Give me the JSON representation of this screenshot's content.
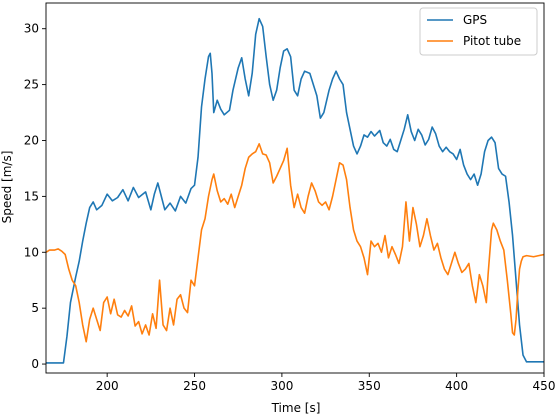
{
  "chart_data": {
    "type": "line",
    "xlabel": "Time [s]",
    "ylabel": "Speed [m/s]",
    "xlim": [
      165,
      450
    ],
    "ylim": [
      -0.8,
      32.3
    ],
    "xticks": [
      200,
      250,
      300,
      350,
      400,
      450
    ],
    "yticks": [
      0,
      5,
      10,
      15,
      20,
      25,
      30
    ],
    "grid": false,
    "legend": "top-right",
    "series": [
      {
        "name": "GPS",
        "color": "#1f77b4",
        "points": [
          [
            165,
            0.1
          ],
          [
            175,
            0.1
          ],
          [
            177,
            2.5
          ],
          [
            179,
            5.5
          ],
          [
            182,
            7.8
          ],
          [
            184,
            9.2
          ],
          [
            186,
            11.0
          ],
          [
            188,
            12.6
          ],
          [
            190,
            14.0
          ],
          [
            192,
            14.5
          ],
          [
            194,
            13.8
          ],
          [
            197,
            14.2
          ],
          [
            200,
            15.2
          ],
          [
            203,
            14.6
          ],
          [
            206,
            14.9
          ],
          [
            209,
            15.6
          ],
          [
            212,
            14.6
          ],
          [
            215,
            15.8
          ],
          [
            218,
            14.9
          ],
          [
            222,
            15.4
          ],
          [
            225,
            13.8
          ],
          [
            227,
            15.2
          ],
          [
            229,
            16.2
          ],
          [
            231,
            15.0
          ],
          [
            233,
            13.8
          ],
          [
            236,
            14.4
          ],
          [
            239,
            13.7
          ],
          [
            242,
            15.0
          ],
          [
            245,
            14.4
          ],
          [
            248,
            15.7
          ],
          [
            250,
            16.0
          ],
          [
            252,
            18.5
          ],
          [
            254,
            23.0
          ],
          [
            256,
            25.5
          ],
          [
            258,
            27.5
          ],
          [
            259,
            27.8
          ],
          [
            260,
            26.0
          ],
          [
            261,
            22.5
          ],
          [
            263,
            23.6
          ],
          [
            265,
            22.8
          ],
          [
            267,
            22.3
          ],
          [
            270,
            22.7
          ],
          [
            272,
            24.5
          ],
          [
            275,
            26.5
          ],
          [
            277,
            27.4
          ],
          [
            279,
            25.5
          ],
          [
            281,
            24.0
          ],
          [
            283,
            26.0
          ],
          [
            285,
            29.5
          ],
          [
            287,
            30.9
          ],
          [
            289,
            30.2
          ],
          [
            291,
            27.5
          ],
          [
            293,
            25.0
          ],
          [
            295,
            23.6
          ],
          [
            297,
            24.5
          ],
          [
            299,
            26.5
          ],
          [
            301,
            28.0
          ],
          [
            303,
            28.2
          ],
          [
            305,
            27.5
          ],
          [
            307,
            24.5
          ],
          [
            309,
            24.0
          ],
          [
            311,
            25.5
          ],
          [
            313,
            26.2
          ],
          [
            316,
            26.0
          ],
          [
            318,
            25.0
          ],
          [
            320,
            24.0
          ],
          [
            322,
            22.0
          ],
          [
            324,
            22.5
          ],
          [
            327,
            24.5
          ],
          [
            329,
            25.5
          ],
          [
            331,
            26.2
          ],
          [
            333,
            25.5
          ],
          [
            335,
            25.0
          ],
          [
            337,
            22.5
          ],
          [
            339,
            21.0
          ],
          [
            341,
            19.5
          ],
          [
            343,
            18.8
          ],
          [
            345,
            19.5
          ],
          [
            347,
            20.5
          ],
          [
            349,
            20.3
          ],
          [
            351,
            20.8
          ],
          [
            353,
            20.4
          ],
          [
            356,
            20.9
          ],
          [
            358,
            19.8
          ],
          [
            360,
            19.5
          ],
          [
            362,
            20.1
          ],
          [
            364,
            19.2
          ],
          [
            366,
            19.0
          ],
          [
            368,
            20.0
          ],
          [
            370,
            21.0
          ],
          [
            372,
            22.3
          ],
          [
            374,
            20.8
          ],
          [
            376,
            20.0
          ],
          [
            378,
            21.0
          ],
          [
            380,
            20.5
          ],
          [
            382,
            19.6
          ],
          [
            384,
            20.1
          ],
          [
            386,
            21.2
          ],
          [
            388,
            20.6
          ],
          [
            390,
            19.5
          ],
          [
            392,
            19.0
          ],
          [
            394,
            19.4
          ],
          [
            396,
            19.0
          ],
          [
            398,
            18.8
          ],
          [
            400,
            18.3
          ],
          [
            402,
            19.2
          ],
          [
            404,
            17.8
          ],
          [
            406,
            17.0
          ],
          [
            408,
            16.5
          ],
          [
            410,
            17.0
          ],
          [
            412,
            16.0
          ],
          [
            414,
            17.0
          ],
          [
            416,
            19.0
          ],
          [
            418,
            20.0
          ],
          [
            420,
            20.3
          ],
          [
            422,
            19.8
          ],
          [
            424,
            17.5
          ],
          [
            426,
            17.0
          ],
          [
            428,
            16.8
          ],
          [
            430,
            14.5
          ],
          [
            432,
            11.5
          ],
          [
            434,
            7.5
          ],
          [
            436,
            3.5
          ],
          [
            438,
            0.8
          ],
          [
            440,
            0.2
          ],
          [
            443,
            0.2
          ],
          [
            447,
            0.2
          ],
          [
            450,
            0.2
          ]
        ]
      },
      {
        "name": "Pitot tube",
        "color": "#ff7f0e",
        "points": [
          [
            165,
            10.0
          ],
          [
            167,
            10.2
          ],
          [
            170,
            10.2
          ],
          [
            172,
            10.3
          ],
          [
            174,
            10.1
          ],
          [
            176,
            9.8
          ],
          [
            178,
            8.5
          ],
          [
            180,
            7.5
          ],
          [
            182,
            7.0
          ],
          [
            184,
            5.5
          ],
          [
            186,
            3.5
          ],
          [
            188,
            2.0
          ],
          [
            190,
            4.0
          ],
          [
            192,
            5.0
          ],
          [
            194,
            4.0
          ],
          [
            196,
            3.0
          ],
          [
            198,
            5.5
          ],
          [
            200,
            6.0
          ],
          [
            202,
            4.5
          ],
          [
            204,
            5.8
          ],
          [
            206,
            4.4
          ],
          [
            208,
            4.2
          ],
          [
            210,
            4.8
          ],
          [
            212,
            4.3
          ],
          [
            214,
            5.2
          ],
          [
            216,
            3.4
          ],
          [
            218,
            3.8
          ],
          [
            220,
            2.7
          ],
          [
            222,
            3.5
          ],
          [
            224,
            2.6
          ],
          [
            226,
            4.5
          ],
          [
            228,
            3.2
          ],
          [
            230,
            7.5
          ],
          [
            232,
            3.5
          ],
          [
            234,
            3.0
          ],
          [
            236,
            5.0
          ],
          [
            238,
            3.5
          ],
          [
            240,
            5.8
          ],
          [
            242,
            6.2
          ],
          [
            244,
            5.0
          ],
          [
            246,
            4.6
          ],
          [
            248,
            7.5
          ],
          [
            250,
            7.0
          ],
          [
            252,
            9.5
          ],
          [
            254,
            12.0
          ],
          [
            256,
            13.0
          ],
          [
            258,
            15.0
          ],
          [
            260,
            16.5
          ],
          [
            261,
            17.0
          ],
          [
            263,
            15.5
          ],
          [
            265,
            14.5
          ],
          [
            267,
            14.8
          ],
          [
            269,
            14.3
          ],
          [
            271,
            15.2
          ],
          [
            273,
            14.0
          ],
          [
            275,
            15.0
          ],
          [
            277,
            16.0
          ],
          [
            279,
            17.5
          ],
          [
            281,
            18.5
          ],
          [
            283,
            18.8
          ],
          [
            285,
            19.0
          ],
          [
            287,
            19.7
          ],
          [
            289,
            18.8
          ],
          [
            291,
            18.7
          ],
          [
            293,
            18.0
          ],
          [
            295,
            16.2
          ],
          [
            297,
            16.8
          ],
          [
            299,
            17.5
          ],
          [
            301,
            18.2
          ],
          [
            303,
            19.3
          ],
          [
            305,
            16.0
          ],
          [
            307,
            14.0
          ],
          [
            309,
            15.2
          ],
          [
            311,
            14.0
          ],
          [
            313,
            13.5
          ],
          [
            315,
            15.0
          ],
          [
            317,
            16.2
          ],
          [
            319,
            15.5
          ],
          [
            321,
            14.5
          ],
          [
            323,
            14.2
          ],
          [
            325,
            14.5
          ],
          [
            327,
            13.8
          ],
          [
            329,
            15.0
          ],
          [
            331,
            16.5
          ],
          [
            333,
            18.0
          ],
          [
            335,
            17.8
          ],
          [
            337,
            16.5
          ],
          [
            339,
            14.0
          ],
          [
            341,
            12.0
          ],
          [
            343,
            11.0
          ],
          [
            345,
            10.5
          ],
          [
            347,
            9.5
          ],
          [
            349,
            8.0
          ],
          [
            351,
            11.0
          ],
          [
            353,
            10.5
          ],
          [
            355,
            10.8
          ],
          [
            357,
            10.0
          ],
          [
            359,
            11.5
          ],
          [
            361,
            9.5
          ],
          [
            363,
            10.5
          ],
          [
            365,
            9.8
          ],
          [
            367,
            9.0
          ],
          [
            369,
            10.5
          ],
          [
            371,
            14.5
          ],
          [
            373,
            11.0
          ],
          [
            375,
            14.0
          ],
          [
            377,
            12.5
          ],
          [
            379,
            10.5
          ],
          [
            381,
            11.5
          ],
          [
            383,
            13.0
          ],
          [
            385,
            11.5
          ],
          [
            387,
            10.2
          ],
          [
            389,
            10.8
          ],
          [
            391,
            9.5
          ],
          [
            393,
            8.5
          ],
          [
            395,
            8.0
          ],
          [
            397,
            9.0
          ],
          [
            399,
            10.0
          ],
          [
            401,
            9.0
          ],
          [
            403,
            8.2
          ],
          [
            405,
            8.5
          ],
          [
            407,
            9.0
          ],
          [
            409,
            7.0
          ],
          [
            411,
            5.5
          ],
          [
            413,
            8.0
          ],
          [
            415,
            7.0
          ],
          [
            417,
            5.5
          ],
          [
            418,
            8.0
          ],
          [
            420,
            12.0
          ],
          [
            421,
            12.6
          ],
          [
            423,
            12.0
          ],
          [
            425,
            11.0
          ],
          [
            427,
            10.2
          ],
          [
            429,
            7.5
          ],
          [
            431,
            4.5
          ],
          [
            432,
            2.8
          ],
          [
            433,
            2.6
          ],
          [
            434,
            4.0
          ],
          [
            435,
            6.5
          ],
          [
            436,
            8.5
          ],
          [
            437,
            9.2
          ],
          [
            438,
            9.6
          ],
          [
            440,
            9.7
          ],
          [
            444,
            9.6
          ],
          [
            447,
            9.7
          ],
          [
            450,
            9.8
          ]
        ]
      }
    ]
  }
}
